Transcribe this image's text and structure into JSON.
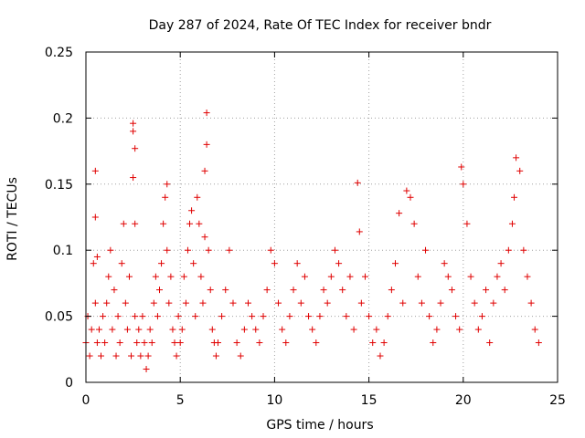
{
  "chart_data": {
    "type": "scatter",
    "title": "Day 287 of 2024, Rate Of TEC Index for receiver bndr",
    "xlabel": "GPS time / hours",
    "ylabel": "ROTI / TECUs",
    "xlim": [
      0,
      25
    ],
    "ylim": [
      0,
      0.25
    ],
    "xticks": [
      0,
      5,
      10,
      15,
      20,
      25
    ],
    "yticks": [
      0,
      0.05,
      0.1,
      0.15,
      0.2,
      0.25
    ],
    "xtick_labels": [
      "0",
      "5",
      "10",
      "15",
      "20",
      "25"
    ],
    "ytick_labels": [
      "0",
      "0.05",
      "0.1",
      "0.15",
      "0.2",
      "0.25"
    ],
    "grid": true,
    "marker": "+",
    "color": "#e00000",
    "series": [
      {
        "x": [
          0.0,
          0.1,
          0.2,
          0.3,
          0.4,
          0.5,
          0.5,
          0.5,
          0.6,
          0.6,
          0.7,
          0.8,
          0.9,
          1.0,
          1.1,
          1.2,
          1.3,
          1.4,
          1.5,
          1.6,
          1.7,
          1.8,
          1.9,
          2.0,
          2.1,
          2.2,
          2.3,
          2.4,
          2.5,
          2.5,
          2.5,
          2.6,
          2.6,
          2.6,
          2.7,
          2.8,
          2.9,
          3.0,
          3.1,
          3.2,
          3.3,
          3.4,
          3.5,
          3.6,
          3.7,
          3.8,
          3.9,
          4.0,
          4.1,
          4.2,
          4.3,
          4.3,
          4.4,
          4.5,
          4.6,
          4.7,
          4.8,
          4.9,
          5.0,
          5.1,
          5.2,
          5.3,
          5.4,
          5.5,
          5.6,
          5.7,
          5.8,
          5.9,
          6.0,
          6.1,
          6.2,
          6.3,
          6.3,
          6.4,
          6.4,
          6.5,
          6.6,
          6.7,
          6.8,
          6.9,
          7.0,
          7.2,
          7.4,
          7.6,
          7.8,
          8.0,
          8.2,
          8.4,
          8.6,
          8.8,
          9.0,
          9.2,
          9.4,
          9.6,
          9.8,
          10.0,
          10.2,
          10.4,
          10.6,
          10.8,
          11.0,
          11.2,
          11.4,
          11.6,
          11.8,
          12.0,
          12.2,
          12.4,
          12.6,
          12.8,
          13.0,
          13.2,
          13.4,
          13.6,
          13.8,
          14.0,
          14.2,
          14.4,
          14.5,
          14.6,
          14.8,
          15.0,
          15.2,
          15.4,
          15.6,
          15.8,
          16.0,
          16.2,
          16.4,
          16.6,
          16.8,
          17.0,
          17.2,
          17.4,
          17.6,
          17.8,
          18.0,
          18.2,
          18.4,
          18.6,
          18.8,
          19.0,
          19.2,
          19.4,
          19.6,
          19.8,
          19.9,
          20.0,
          20.2,
          20.4,
          20.6,
          20.8,
          21.0,
          21.2,
          21.4,
          21.6,
          21.8,
          22.0,
          22.2,
          22.4,
          22.6,
          22.7,
          22.8,
          23.0,
          23.2,
          23.4,
          23.6,
          23.8,
          24.0
        ],
        "y": [
          0.03,
          0.05,
          0.02,
          0.04,
          0.09,
          0.16,
          0.125,
          0.06,
          0.03,
          0.095,
          0.04,
          0.02,
          0.05,
          0.03,
          0.06,
          0.08,
          0.1,
          0.04,
          0.07,
          0.02,
          0.05,
          0.03,
          0.09,
          0.12,
          0.06,
          0.04,
          0.08,
          0.02,
          0.196,
          0.19,
          0.155,
          0.177,
          0.12,
          0.05,
          0.03,
          0.04,
          0.02,
          0.05,
          0.03,
          0.01,
          0.02,
          0.04,
          0.03,
          0.06,
          0.08,
          0.05,
          0.07,
          0.09,
          0.12,
          0.14,
          0.15,
          0.1,
          0.06,
          0.08,
          0.04,
          0.03,
          0.02,
          0.05,
          0.03,
          0.04,
          0.08,
          0.06,
          0.1,
          0.12,
          0.13,
          0.09,
          0.05,
          0.14,
          0.12,
          0.08,
          0.06,
          0.11,
          0.16,
          0.204,
          0.18,
          0.1,
          0.07,
          0.04,
          0.03,
          0.02,
          0.03,
          0.05,
          0.07,
          0.1,
          0.06,
          0.03,
          0.02,
          0.04,
          0.06,
          0.05,
          0.04,
          0.03,
          0.05,
          0.07,
          0.1,
          0.09,
          0.06,
          0.04,
          0.03,
          0.05,
          0.07,
          0.09,
          0.06,
          0.08,
          0.05,
          0.04,
          0.03,
          0.05,
          0.07,
          0.06,
          0.08,
          0.1,
          0.09,
          0.07,
          0.05,
          0.08,
          0.04,
          0.151,
          0.114,
          0.06,
          0.08,
          0.05,
          0.03,
          0.04,
          0.02,
          0.03,
          0.05,
          0.07,
          0.09,
          0.128,
          0.06,
          0.145,
          0.14,
          0.12,
          0.08,
          0.06,
          0.1,
          0.05,
          0.03,
          0.04,
          0.06,
          0.09,
          0.08,
          0.07,
          0.05,
          0.04,
          0.163,
          0.15,
          0.12,
          0.08,
          0.06,
          0.04,
          0.05,
          0.07,
          0.03,
          0.06,
          0.08,
          0.09,
          0.07,
          0.1,
          0.12,
          0.14,
          0.17,
          0.16,
          0.1,
          0.08,
          0.06,
          0.04,
          0.03
        ]
      }
    ]
  }
}
